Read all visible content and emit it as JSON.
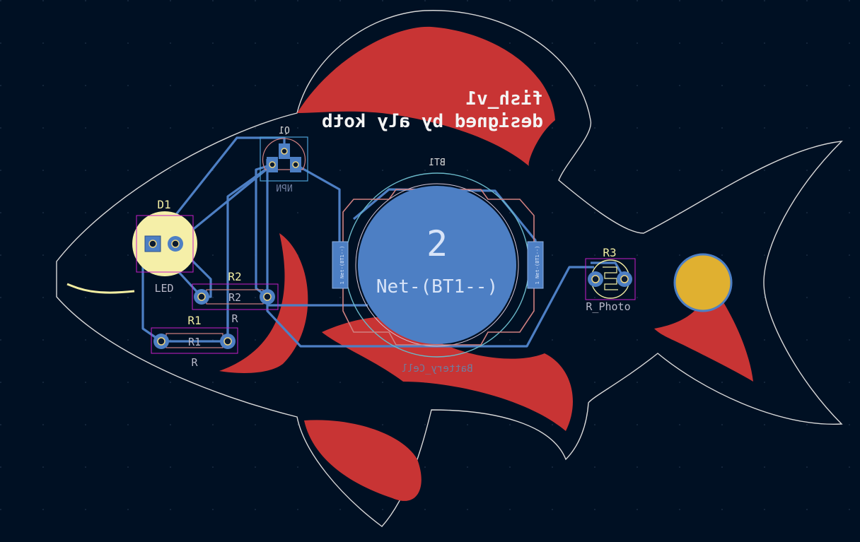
{
  "board": {
    "title_line1": "fish_v1",
    "title_line2": "designed by aly kotb"
  },
  "components": {
    "d1": {
      "ref": "D1",
      "value": "LED"
    },
    "q1": {
      "ref": "Q1",
      "value": "NPN"
    },
    "r1": {
      "ref": "R1",
      "value": "R",
      "body": "R1"
    },
    "r2": {
      "ref": "R2",
      "value": "R",
      "body": "R2"
    },
    "r3": {
      "ref": "R3",
      "value": "R_Photo"
    },
    "bt1": {
      "ref": "BT1",
      "value": "Battery_Cell",
      "pad_number": "2",
      "pad_net": "Net-(BT1--)",
      "side_pad_label": "1 Net-(BT1--)"
    }
  },
  "colors": {
    "background": "#001023",
    "board_outline": "#d8d8d8",
    "silk_art": "#c83434",
    "track": "#4d7fc4",
    "pad_highlight": "#f5efa8",
    "courtyard": "#c81ec8",
    "fab": "#d08080",
    "eye": "#e0b030",
    "silk_text": "#f2eda1"
  }
}
